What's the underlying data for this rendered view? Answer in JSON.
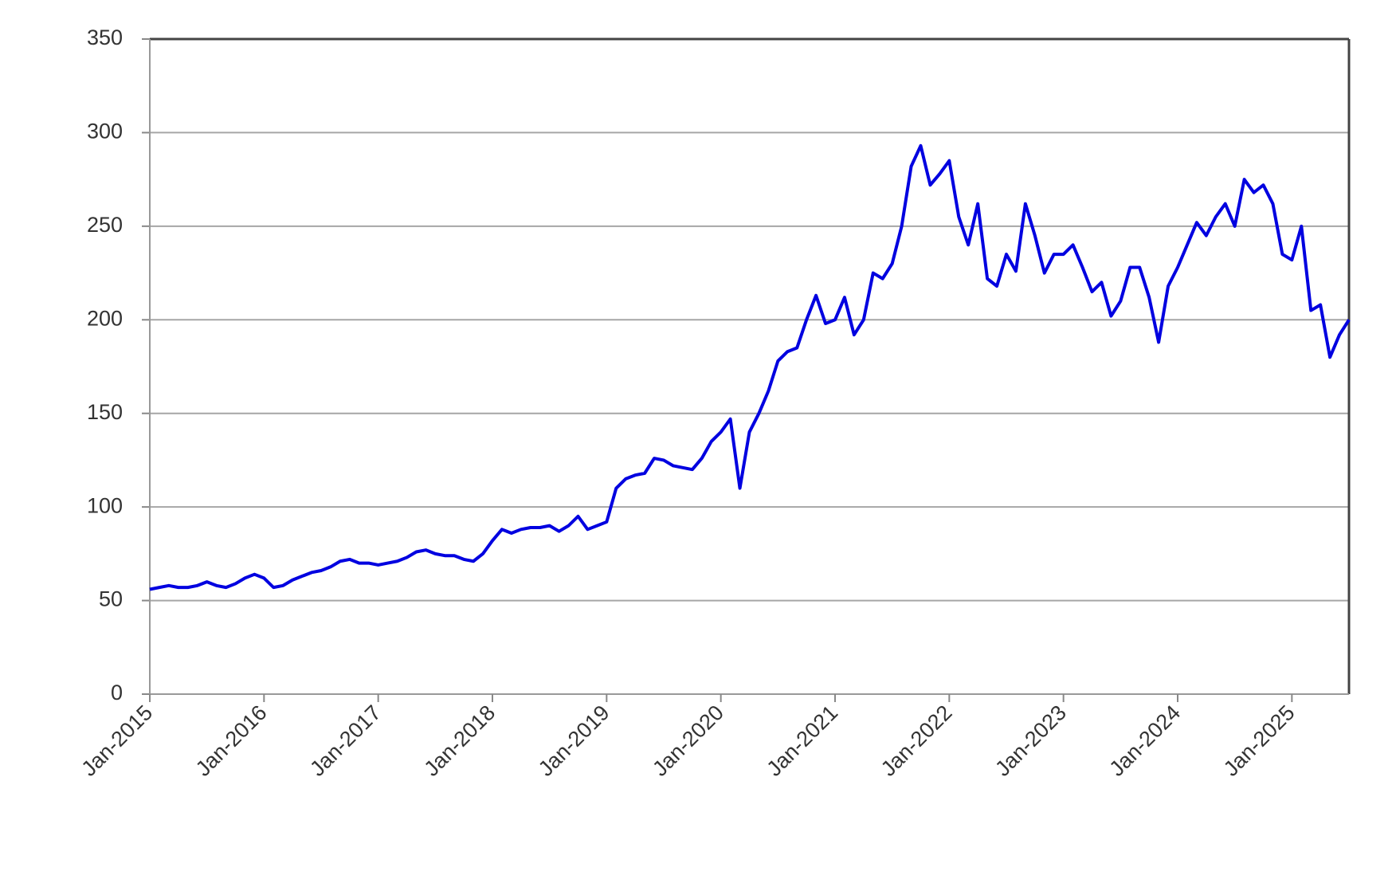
{
  "chart_data": {
    "type": "line",
    "x": [
      "2015-01",
      "2015-02",
      "2015-03",
      "2015-04",
      "2015-05",
      "2015-06",
      "2015-07",
      "2015-08",
      "2015-09",
      "2015-10",
      "2015-11",
      "2015-12",
      "2016-01",
      "2016-02",
      "2016-03",
      "2016-04",
      "2016-05",
      "2016-06",
      "2016-07",
      "2016-08",
      "2016-09",
      "2016-10",
      "2016-11",
      "2016-12",
      "2017-01",
      "2017-02",
      "2017-03",
      "2017-04",
      "2017-05",
      "2017-06",
      "2017-07",
      "2017-08",
      "2017-09",
      "2017-10",
      "2017-11",
      "2017-12",
      "2018-01",
      "2018-02",
      "2018-03",
      "2018-04",
      "2018-05",
      "2018-06",
      "2018-07",
      "2018-08",
      "2018-09",
      "2018-10",
      "2018-11",
      "2018-12",
      "2019-01",
      "2019-02",
      "2019-03",
      "2019-04",
      "2019-05",
      "2019-06",
      "2019-07",
      "2019-08",
      "2019-09",
      "2019-10",
      "2019-11",
      "2019-12",
      "2020-01",
      "2020-02",
      "2020-03",
      "2020-04",
      "2020-05",
      "2020-06",
      "2020-07",
      "2020-08",
      "2020-09",
      "2020-10",
      "2020-11",
      "2020-12",
      "2021-01",
      "2021-02",
      "2021-03",
      "2021-04",
      "2021-05",
      "2021-06",
      "2021-07",
      "2021-08",
      "2021-09",
      "2021-10",
      "2021-11",
      "2021-12",
      "2022-01",
      "2022-02",
      "2022-03",
      "2022-04",
      "2022-05",
      "2022-06",
      "2022-07",
      "2022-08",
      "2022-09",
      "2022-10",
      "2022-11",
      "2022-12",
      "2023-01",
      "2023-02",
      "2023-03",
      "2023-04",
      "2023-05",
      "2023-06",
      "2023-07",
      "2023-08",
      "2023-09",
      "2023-10",
      "2023-11",
      "2023-12",
      "2024-01",
      "2024-02",
      "2024-03",
      "2024-04",
      "2024-05",
      "2024-06",
      "2024-07",
      "2024-08",
      "2024-09",
      "2024-10",
      "2024-11",
      "2024-12",
      "2025-01",
      "2025-02",
      "2025-03",
      "2025-04",
      "2025-05",
      "2025-06",
      "2025-07"
    ],
    "series": [
      {
        "color": "#0000e0",
        "values": [
          56,
          57,
          58,
          57,
          57,
          58,
          60,
          58,
          57,
          59,
          62,
          64,
          62,
          57,
          58,
          61,
          63,
          65,
          66,
          68,
          71,
          72,
          70,
          70,
          69,
          70,
          71,
          73,
          76,
          77,
          75,
          74,
          74,
          72,
          71,
          75,
          82,
          88,
          86,
          88,
          89,
          89,
          90,
          87,
          90,
          95,
          88,
          90,
          92,
          110,
          115,
          117,
          118,
          126,
          125,
          122,
          121,
          120,
          126,
          135,
          140,
          147,
          110,
          140,
          150,
          162,
          178,
          183,
          185,
          200,
          213,
          198,
          200,
          212,
          192,
          200,
          225,
          222,
          230,
          250,
          282,
          293,
          272,
          278,
          285,
          255,
          240,
          262,
          222,
          218,
          235,
          226,
          262,
          245,
          225,
          235,
          235,
          240,
          228,
          215,
          220,
          202,
          210,
          228,
          228,
          212,
          188,
          218,
          228,
          240,
          252,
          245,
          255,
          262,
          250,
          275,
          268,
          272,
          262,
          235,
          232,
          250,
          205,
          208,
          180,
          192,
          200
        ]
      }
    ],
    "xlim": [
      "2015-01",
      "2025-07"
    ],
    "xticks": [
      {
        "value": "2015-01",
        "label": "Jan-2015"
      },
      {
        "value": "2016-01",
        "label": "Jan-2016"
      },
      {
        "value": "2017-01",
        "label": "Jan-2017"
      },
      {
        "value": "2018-01",
        "label": "Jan-2018"
      },
      {
        "value": "2019-01",
        "label": "Jan-2019"
      },
      {
        "value": "2020-01",
        "label": "Jan-2020"
      },
      {
        "value": "2021-01",
        "label": "Jan-2021"
      },
      {
        "value": "2022-01",
        "label": "Jan-2022"
      },
      {
        "value": "2023-01",
        "label": "Jan-2023"
      },
      {
        "value": "2024-01",
        "label": "Jan-2024"
      },
      {
        "value": "2025-01",
        "label": "Jan-2025"
      }
    ],
    "ylim": [
      0,
      350
    ],
    "yticks": [
      0,
      50,
      100,
      150,
      200,
      250,
      300,
      350
    ],
    "grid": true
  }
}
